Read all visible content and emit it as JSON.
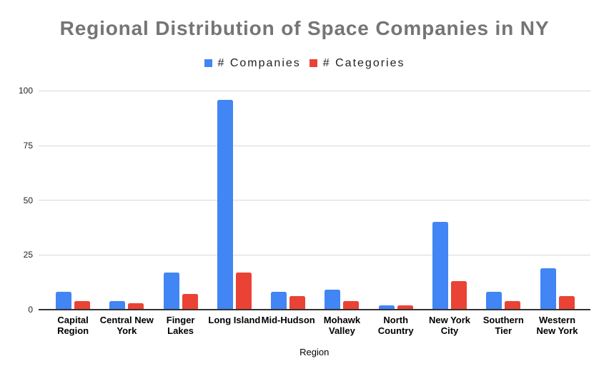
{
  "chart_data": {
    "type": "bar",
    "title": "Regional Distribution of Space Companies in NY",
    "xlabel": "Region",
    "ylabel": "",
    "categories": [
      "Capital Region",
      "Central New York",
      "Finger Lakes",
      "Long Island",
      "Mid-Hudson",
      "Mohawk Valley",
      "North Country",
      "New York City",
      "Southern Tier",
      "Western New York"
    ],
    "category_label_lines": [
      [
        "Capital",
        "Region"
      ],
      [
        "Central New",
        "York"
      ],
      [
        "Finger",
        "Lakes"
      ],
      [
        "Long Island"
      ],
      [
        "Mid-Hudson"
      ],
      [
        "Mohawk",
        "Valley"
      ],
      [
        "North",
        "Country"
      ],
      [
        "New York",
        "City"
      ],
      [
        "Southern",
        "Tier"
      ],
      [
        "Western",
        "New York"
      ]
    ],
    "series": [
      {
        "name": "# Companies",
        "color": "#4285f4",
        "values": [
          8,
          4,
          17,
          96,
          8,
          9,
          2,
          40,
          8,
          19
        ]
      },
      {
        "name": "# Categories",
        "color": "#ea4335",
        "values": [
          4,
          3,
          7,
          17,
          6,
          4,
          2,
          13,
          4,
          6
        ]
      }
    ],
    "ylim": [
      0,
      100
    ],
    "yticks": [
      0,
      25,
      50,
      75,
      100
    ],
    "grid": true,
    "legend_position": "top"
  },
  "colors": {
    "title": "#757575",
    "series_companies": "#4285f4",
    "series_categories": "#ea4335",
    "gridline": "#d9d9d9",
    "baseline": "#333333",
    "background": "#ffffff"
  }
}
